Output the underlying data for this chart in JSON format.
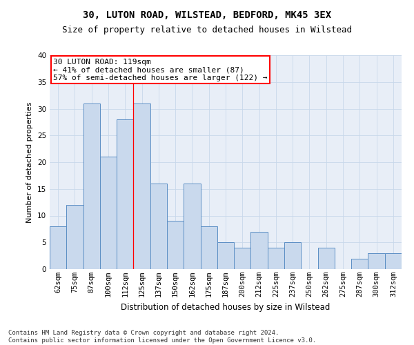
{
  "title1": "30, LUTON ROAD, WILSTEAD, BEDFORD, MK45 3EX",
  "title2": "Size of property relative to detached houses in Wilstead",
  "xlabel": "Distribution of detached houses by size in Wilstead",
  "ylabel": "Number of detached properties",
  "categories": [
    "62sqm",
    "75sqm",
    "87sqm",
    "100sqm",
    "112sqm",
    "125sqm",
    "137sqm",
    "150sqm",
    "162sqm",
    "175sqm",
    "187sqm",
    "200sqm",
    "212sqm",
    "225sqm",
    "237sqm",
    "250sqm",
    "262sqm",
    "275sqm",
    "287sqm",
    "300sqm",
    "312sqm"
  ],
  "values": [
    8,
    12,
    31,
    21,
    28,
    31,
    16,
    9,
    16,
    8,
    5,
    4,
    7,
    4,
    5,
    0,
    4,
    0,
    2,
    3,
    3
  ],
  "bar_color": "#c9d9ed",
  "bar_edge_color": "#5b8ec4",
  "grid_color": "#c8d8ea",
  "background_color": "#e8eef7",
  "red_line_x": 4.5,
  "annotation_box_text_line1": "30 LUTON ROAD: 119sqm",
  "annotation_box_text_line2": "← 41% of detached houses are smaller (87)",
  "annotation_box_text_line3": "57% of semi-detached houses are larger (122) →",
  "ylim": [
    0,
    40
  ],
  "yticks": [
    0,
    5,
    10,
    15,
    20,
    25,
    30,
    35,
    40
  ],
  "footer": "Contains HM Land Registry data © Crown copyright and database right 2024.\nContains public sector information licensed under the Open Government Licence v3.0.",
  "title1_fontsize": 10,
  "title2_fontsize": 9,
  "xlabel_fontsize": 8.5,
  "ylabel_fontsize": 8,
  "tick_fontsize": 7.5,
  "annotation_fontsize": 8,
  "footer_fontsize": 6.5
}
